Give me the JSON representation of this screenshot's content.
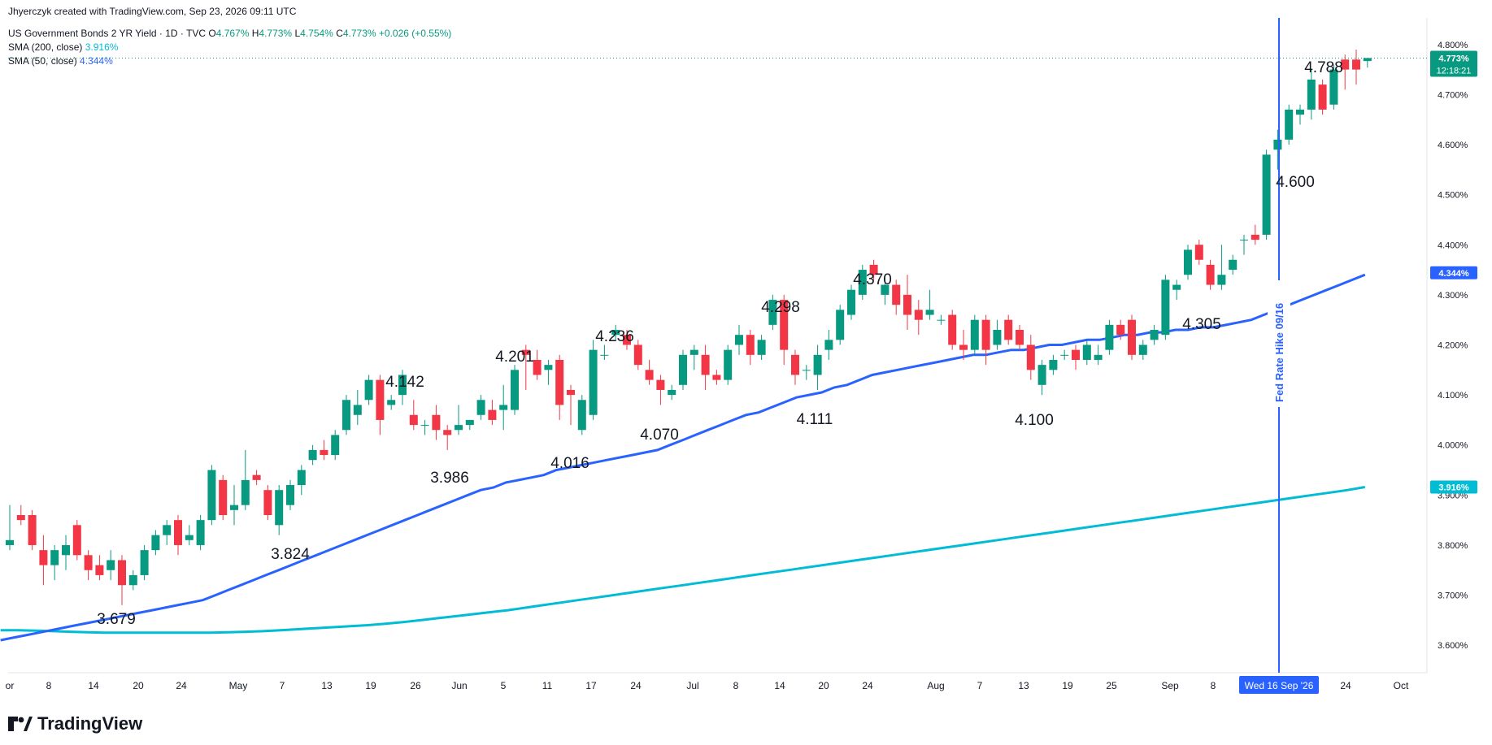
{
  "header": {
    "attribution": "Jhyerczyk created with TradingView.com, Sep 23, 2026 09:11 UTC",
    "symbol": "US Government Bonds 2 YR Yield · 1D · TVC",
    "o_label": "O",
    "o_value": "4.767%",
    "h_label": "H",
    "h_value": "4.773%",
    "l_label": "L",
    "l_value": "4.754%",
    "c_label": "C",
    "c_value": "4.773%",
    "change": "+0.026 (+0.55%)",
    "sma200_label": "SMA (200, close)",
    "sma200_value": "3.916%",
    "sma50_label": "SMA (50, close)",
    "sma50_value": "4.344%"
  },
  "footer": {
    "logo_text": "TradingView"
  },
  "colors": {
    "up": "#089981",
    "down": "#f23645",
    "sma50": "#2962ff",
    "sma200": "#00bcd4",
    "event": "#2962ff"
  },
  "chart_data": {
    "type": "candlestick",
    "y_axis": {
      "min": 3.55,
      "max": 4.85,
      "position": "right",
      "ticks": [
        "3.600%",
        "3.700%",
        "3.800%",
        "3.900%",
        "4.000%",
        "4.100%",
        "4.200%",
        "4.300%",
        "4.400%",
        "4.500%",
        "4.600%",
        "4.700%",
        "4.800%"
      ]
    },
    "x_axis": {
      "ticks": [
        "or",
        "8",
        "14",
        "20",
        "24",
        "May",
        "7",
        "13",
        "19",
        "26",
        "Jun",
        "5",
        "11",
        "17",
        "24",
        "Jul",
        "8",
        "14",
        "20",
        "24",
        "Aug",
        "7",
        "13",
        "19",
        "25",
        "Sep",
        "8",
        "Wed 16 Sep '26",
        "24",
        "Oct"
      ]
    },
    "candles": [
      {
        "o": 3.8,
        "h": 3.88,
        "l": 3.79,
        "c": 3.81
      },
      {
        "o": 3.86,
        "h": 3.88,
        "l": 3.84,
        "c": 3.85
      },
      {
        "o": 3.86,
        "h": 3.87,
        "l": 3.79,
        "c": 3.8
      },
      {
        "o": 3.79,
        "h": 3.82,
        "l": 3.72,
        "c": 3.76
      },
      {
        "o": 3.76,
        "h": 3.8,
        "l": 3.73,
        "c": 3.79
      },
      {
        "o": 3.78,
        "h": 3.82,
        "l": 3.75,
        "c": 3.8
      },
      {
        "o": 3.84,
        "h": 3.85,
        "l": 3.77,
        "c": 3.78
      },
      {
        "o": 3.78,
        "h": 3.79,
        "l": 3.73,
        "c": 3.75
      },
      {
        "o": 3.76,
        "h": 3.78,
        "l": 3.73,
        "c": 3.74
      },
      {
        "o": 3.75,
        "h": 3.79,
        "l": 3.73,
        "c": 3.77
      },
      {
        "o": 3.77,
        "h": 3.78,
        "l": 3.68,
        "c": 3.72
      },
      {
        "o": 3.72,
        "h": 3.75,
        "l": 3.71,
        "c": 3.74
      },
      {
        "o": 3.74,
        "h": 3.8,
        "l": 3.73,
        "c": 3.79
      },
      {
        "o": 3.79,
        "h": 3.83,
        "l": 3.78,
        "c": 3.82
      },
      {
        "o": 3.82,
        "h": 3.85,
        "l": 3.8,
        "c": 3.84
      },
      {
        "o": 3.85,
        "h": 3.86,
        "l": 3.78,
        "c": 3.8
      },
      {
        "o": 3.81,
        "h": 3.84,
        "l": 3.8,
        "c": 3.82
      },
      {
        "o": 3.8,
        "h": 3.86,
        "l": 3.79,
        "c": 3.85
      },
      {
        "o": 3.85,
        "h": 3.96,
        "l": 3.84,
        "c": 3.95
      },
      {
        "o": 3.93,
        "h": 3.94,
        "l": 3.85,
        "c": 3.86
      },
      {
        "o": 3.87,
        "h": 3.92,
        "l": 3.84,
        "c": 3.88
      },
      {
        "o": 3.88,
        "h": 3.99,
        "l": 3.87,
        "c": 3.93
      },
      {
        "o": 3.94,
        "h": 3.95,
        "l": 3.92,
        "c": 3.93
      },
      {
        "o": 3.91,
        "h": 3.92,
        "l": 3.85,
        "c": 3.86
      },
      {
        "o": 3.84,
        "h": 3.92,
        "l": 3.82,
        "c": 3.91
      },
      {
        "o": 3.88,
        "h": 3.93,
        "l": 3.87,
        "c": 3.92
      },
      {
        "o": 3.92,
        "h": 3.96,
        "l": 3.9,
        "c": 3.95
      },
      {
        "o": 3.97,
        "h": 4.0,
        "l": 3.96,
        "c": 3.99
      },
      {
        "o": 3.99,
        "h": 4.01,
        "l": 3.97,
        "c": 3.98
      },
      {
        "o": 3.98,
        "h": 4.03,
        "l": 3.97,
        "c": 4.02
      },
      {
        "o": 4.03,
        "h": 4.1,
        "l": 4.02,
        "c": 4.09
      },
      {
        "o": 4.06,
        "h": 4.11,
        "l": 4.04,
        "c": 4.08
      },
      {
        "o": 4.09,
        "h": 4.14,
        "l": 4.08,
        "c": 4.13
      },
      {
        "o": 4.13,
        "h": 4.14,
        "l": 4.02,
        "c": 4.05
      },
      {
        "o": 4.08,
        "h": 4.1,
        "l": 4.07,
        "c": 4.09
      },
      {
        "o": 4.1,
        "h": 4.15,
        "l": 4.08,
        "c": 4.14
      },
      {
        "o": 4.06,
        "h": 4.09,
        "l": 4.03,
        "c": 4.04
      },
      {
        "o": 4.04,
        "h": 4.05,
        "l": 4.02,
        "c": 4.04
      },
      {
        "o": 4.06,
        "h": 4.08,
        "l": 4.01,
        "c": 4.03
      },
      {
        "o": 4.03,
        "h": 4.04,
        "l": 3.99,
        "c": 4.02
      },
      {
        "o": 4.03,
        "h": 4.08,
        "l": 4.02,
        "c": 4.04
      },
      {
        "o": 4.04,
        "h": 4.05,
        "l": 4.03,
        "c": 4.05
      },
      {
        "o": 4.06,
        "h": 4.1,
        "l": 4.05,
        "c": 4.09
      },
      {
        "o": 4.07,
        "h": 4.09,
        "l": 4.04,
        "c": 4.05
      },
      {
        "o": 4.07,
        "h": 4.12,
        "l": 4.03,
        "c": 4.08
      },
      {
        "o": 4.07,
        "h": 4.16,
        "l": 4.06,
        "c": 4.15
      },
      {
        "o": 4.19,
        "h": 4.2,
        "l": 4.11,
        "c": 4.18
      },
      {
        "o": 4.17,
        "h": 4.19,
        "l": 4.13,
        "c": 4.14
      },
      {
        "o": 4.15,
        "h": 4.17,
        "l": 4.12,
        "c": 4.16
      },
      {
        "o": 4.17,
        "h": 4.18,
        "l": 4.05,
        "c": 4.08
      },
      {
        "o": 4.11,
        "h": 4.12,
        "l": 4.04,
        "c": 4.1
      },
      {
        "o": 4.03,
        "h": 4.1,
        "l": 4.02,
        "c": 4.09
      },
      {
        "o": 4.06,
        "h": 4.21,
        "l": 4.05,
        "c": 4.19
      },
      {
        "o": 4.18,
        "h": 4.2,
        "l": 4.17,
        "c": 4.18
      },
      {
        "o": 4.22,
        "h": 4.24,
        "l": 4.21,
        "c": 4.23
      },
      {
        "o": 4.22,
        "h": 4.23,
        "l": 4.19,
        "c": 4.2
      },
      {
        "o": 4.2,
        "h": 4.21,
        "l": 4.15,
        "c": 4.16
      },
      {
        "o": 4.15,
        "h": 4.17,
        "l": 4.12,
        "c": 4.13
      },
      {
        "o": 4.13,
        "h": 4.14,
        "l": 4.08,
        "c": 4.11
      },
      {
        "o": 4.1,
        "h": 4.12,
        "l": 4.09,
        "c": 4.11
      },
      {
        "o": 4.12,
        "h": 4.19,
        "l": 4.11,
        "c": 4.18
      },
      {
        "o": 4.18,
        "h": 4.2,
        "l": 4.15,
        "c": 4.19
      },
      {
        "o": 4.18,
        "h": 4.2,
        "l": 4.11,
        "c": 4.14
      },
      {
        "o": 4.14,
        "h": 4.15,
        "l": 4.12,
        "c": 4.13
      },
      {
        "o": 4.13,
        "h": 4.2,
        "l": 4.12,
        "c": 4.19
      },
      {
        "o": 4.2,
        "h": 4.24,
        "l": 4.18,
        "c": 4.22
      },
      {
        "o": 4.22,
        "h": 4.23,
        "l": 4.16,
        "c": 4.18
      },
      {
        "o": 4.18,
        "h": 4.22,
        "l": 4.17,
        "c": 4.21
      },
      {
        "o": 4.24,
        "h": 4.3,
        "l": 4.23,
        "c": 4.29
      },
      {
        "o": 4.29,
        "h": 4.3,
        "l": 4.16,
        "c": 4.19
      },
      {
        "o": 4.18,
        "h": 4.19,
        "l": 4.12,
        "c": 4.14
      },
      {
        "o": 4.15,
        "h": 4.16,
        "l": 4.13,
        "c": 4.15
      },
      {
        "o": 4.14,
        "h": 4.2,
        "l": 4.11,
        "c": 4.18
      },
      {
        "o": 4.19,
        "h": 4.23,
        "l": 4.17,
        "c": 4.21
      },
      {
        "o": 4.21,
        "h": 4.28,
        "l": 4.2,
        "c": 4.27
      },
      {
        "o": 4.26,
        "h": 4.32,
        "l": 4.25,
        "c": 4.31
      },
      {
        "o": 4.3,
        "h": 4.36,
        "l": 4.29,
        "c": 4.35
      },
      {
        "o": 4.36,
        "h": 4.37,
        "l": 4.33,
        "c": 4.34
      },
      {
        "o": 4.3,
        "h": 4.34,
        "l": 4.28,
        "c": 4.32
      },
      {
        "o": 4.32,
        "h": 4.33,
        "l": 4.26,
        "c": 4.28
      },
      {
        "o": 4.3,
        "h": 4.34,
        "l": 4.23,
        "c": 4.26
      },
      {
        "o": 4.27,
        "h": 4.29,
        "l": 4.22,
        "c": 4.25
      },
      {
        "o": 4.26,
        "h": 4.31,
        "l": 4.25,
        "c": 4.27
      },
      {
        "o": 4.25,
        "h": 4.26,
        "l": 4.24,
        "c": 4.25
      },
      {
        "o": 4.26,
        "h": 4.27,
        "l": 4.19,
        "c": 4.2
      },
      {
        "o": 4.2,
        "h": 4.23,
        "l": 4.17,
        "c": 4.19
      },
      {
        "o": 4.19,
        "h": 4.26,
        "l": 4.18,
        "c": 4.25
      },
      {
        "o": 4.25,
        "h": 4.26,
        "l": 4.16,
        "c": 4.19
      },
      {
        "o": 4.2,
        "h": 4.25,
        "l": 4.19,
        "c": 4.23
      },
      {
        "o": 4.25,
        "h": 4.26,
        "l": 4.2,
        "c": 4.21
      },
      {
        "o": 4.23,
        "h": 4.24,
        "l": 4.19,
        "c": 4.2
      },
      {
        "o": 4.2,
        "h": 4.22,
        "l": 4.13,
        "c": 4.15
      },
      {
        "o": 4.12,
        "h": 4.17,
        "l": 4.1,
        "c": 4.16
      },
      {
        "o": 4.15,
        "h": 4.18,
        "l": 4.14,
        "c": 4.17
      },
      {
        "o": 4.18,
        "h": 4.19,
        "l": 4.17,
        "c": 4.18
      },
      {
        "o": 4.19,
        "h": 4.2,
        "l": 4.15,
        "c": 4.17
      },
      {
        "o": 4.17,
        "h": 4.21,
        "l": 4.16,
        "c": 4.2
      },
      {
        "o": 4.17,
        "h": 4.2,
        "l": 4.16,
        "c": 4.18
      },
      {
        "o": 4.19,
        "h": 4.25,
        "l": 4.18,
        "c": 4.24
      },
      {
        "o": 4.24,
        "h": 4.25,
        "l": 4.21,
        "c": 4.22
      },
      {
        "o": 4.25,
        "h": 4.26,
        "l": 4.17,
        "c": 4.18
      },
      {
        "o": 4.18,
        "h": 4.21,
        "l": 4.17,
        "c": 4.2
      },
      {
        "o": 4.21,
        "h": 4.24,
        "l": 4.2,
        "c": 4.23
      },
      {
        "o": 4.22,
        "h": 4.34,
        "l": 4.21,
        "c": 4.33
      },
      {
        "o": 4.31,
        "h": 4.33,
        "l": 4.29,
        "c": 4.32
      },
      {
        "o": 4.34,
        "h": 4.4,
        "l": 4.33,
        "c": 4.39
      },
      {
        "o": 4.4,
        "h": 4.41,
        "l": 4.36,
        "c": 4.37
      },
      {
        "o": 4.36,
        "h": 4.37,
        "l": 4.31,
        "c": 4.32
      },
      {
        "o": 4.32,
        "h": 4.4,
        "l": 4.31,
        "c": 4.34
      },
      {
        "o": 4.35,
        "h": 4.38,
        "l": 4.34,
        "c": 4.37
      },
      {
        "o": 4.41,
        "h": 4.42,
        "l": 4.38,
        "c": 4.41
      },
      {
        "o": 4.42,
        "h": 4.44,
        "l": 4.4,
        "c": 4.41
      },
      {
        "o": 4.42,
        "h": 4.59,
        "l": 4.41,
        "c": 4.58
      },
      {
        "o": 4.59,
        "h": 4.63,
        "l": 4.55,
        "c": 4.61
      },
      {
        "o": 4.61,
        "h": 4.68,
        "l": 4.6,
        "c": 4.67
      },
      {
        "o": 4.66,
        "h": 4.68,
        "l": 4.64,
        "c": 4.67
      },
      {
        "o": 4.67,
        "h": 4.75,
        "l": 4.65,
        "c": 4.73
      },
      {
        "o": 4.72,
        "h": 4.73,
        "l": 4.66,
        "c": 4.67
      },
      {
        "o": 4.68,
        "h": 4.76,
        "l": 4.67,
        "c": 4.75
      },
      {
        "o": 4.77,
        "h": 4.78,
        "l": 4.71,
        "c": 4.75
      },
      {
        "o": 4.77,
        "h": 4.79,
        "l": 4.72,
        "c": 4.75
      },
      {
        "o": 4.767,
        "h": 4.773,
        "l": 4.754,
        "c": 4.773
      }
    ],
    "sma50": [
      3.61,
      3.615,
      3.62,
      3.625,
      3.63,
      3.635,
      3.64,
      3.645,
      3.65,
      3.655,
      3.66,
      3.665,
      3.67,
      3.675,
      3.68,
      3.685,
      3.69,
      3.7,
      3.71,
      3.72,
      3.73,
      3.74,
      3.75,
      3.76,
      3.77,
      3.78,
      3.79,
      3.8,
      3.81,
      3.82,
      3.83,
      3.84,
      3.85,
      3.86,
      3.87,
      3.88,
      3.89,
      3.9,
      3.91,
      3.915,
      3.925,
      3.93,
      3.935,
      3.94,
      3.95,
      3.955,
      3.96,
      3.965,
      3.97,
      3.975,
      3.98,
      3.985,
      3.99,
      4.0,
      4.01,
      4.02,
      4.03,
      4.04,
      4.05,
      4.06,
      4.065,
      4.075,
      4.085,
      4.095,
      4.1,
      4.105,
      4.115,
      4.12,
      4.13,
      4.14,
      4.145,
      4.15,
      4.155,
      4.16,
      4.165,
      4.17,
      4.175,
      4.18,
      4.18,
      4.185,
      4.19,
      4.19,
      4.195,
      4.2,
      4.2,
      4.205,
      4.21,
      4.21,
      4.215,
      4.22,
      4.22,
      4.225,
      4.225,
      4.23,
      4.23,
      4.235,
      4.235,
      4.24,
      4.245,
      4.25,
      4.26,
      4.27,
      4.28,
      4.29,
      4.3,
      4.31,
      4.32,
      4.33,
      4.34,
      4.344,
      4.3,
      4.31,
      4.32,
      4.33,
      4.34,
      4.344
    ],
    "sma200": [
      3.63,
      3.63,
      3.629,
      3.628,
      3.627,
      3.626,
      3.625,
      3.625,
      3.625,
      3.625,
      3.625,
      3.625,
      3.625,
      3.626,
      3.627,
      3.628,
      3.63,
      3.632,
      3.634,
      3.636,
      3.638,
      3.64,
      3.643,
      3.646,
      3.65,
      3.654,
      3.658,
      3.662,
      3.666,
      3.67,
      3.675,
      3.68,
      3.685,
      3.69,
      3.695,
      3.7,
      3.705,
      3.71,
      3.715,
      3.72,
      3.725,
      3.73,
      3.735,
      3.74,
      3.745,
      3.75,
      3.755,
      3.76,
      3.765,
      3.77,
      3.775,
      3.78,
      3.785,
      3.79,
      3.795,
      3.8,
      3.805,
      3.81,
      3.815,
      3.82,
      3.825,
      3.83,
      3.835,
      3.84,
      3.845,
      3.85,
      3.855,
      3.86,
      3.865,
      3.87,
      3.875,
      3.88,
      3.885,
      3.89,
      3.895,
      3.9,
      3.905,
      3.91,
      3.916
    ],
    "annotations": [
      "3.679",
      "3.824",
      "3.986",
      "4.142",
      "4.016",
      "4.201",
      "4.236",
      "4.070",
      "4.298",
      "4.111",
      "4.370",
      "4.100",
      "4.305",
      "4.600",
      "4.788"
    ],
    "event_label": "Fed Rate Hike 09/16",
    "last_price_label": "4.773%",
    "countdown": "12:18:21",
    "sma50_badge": "4.344%",
    "sma200_badge": "3.916%"
  }
}
